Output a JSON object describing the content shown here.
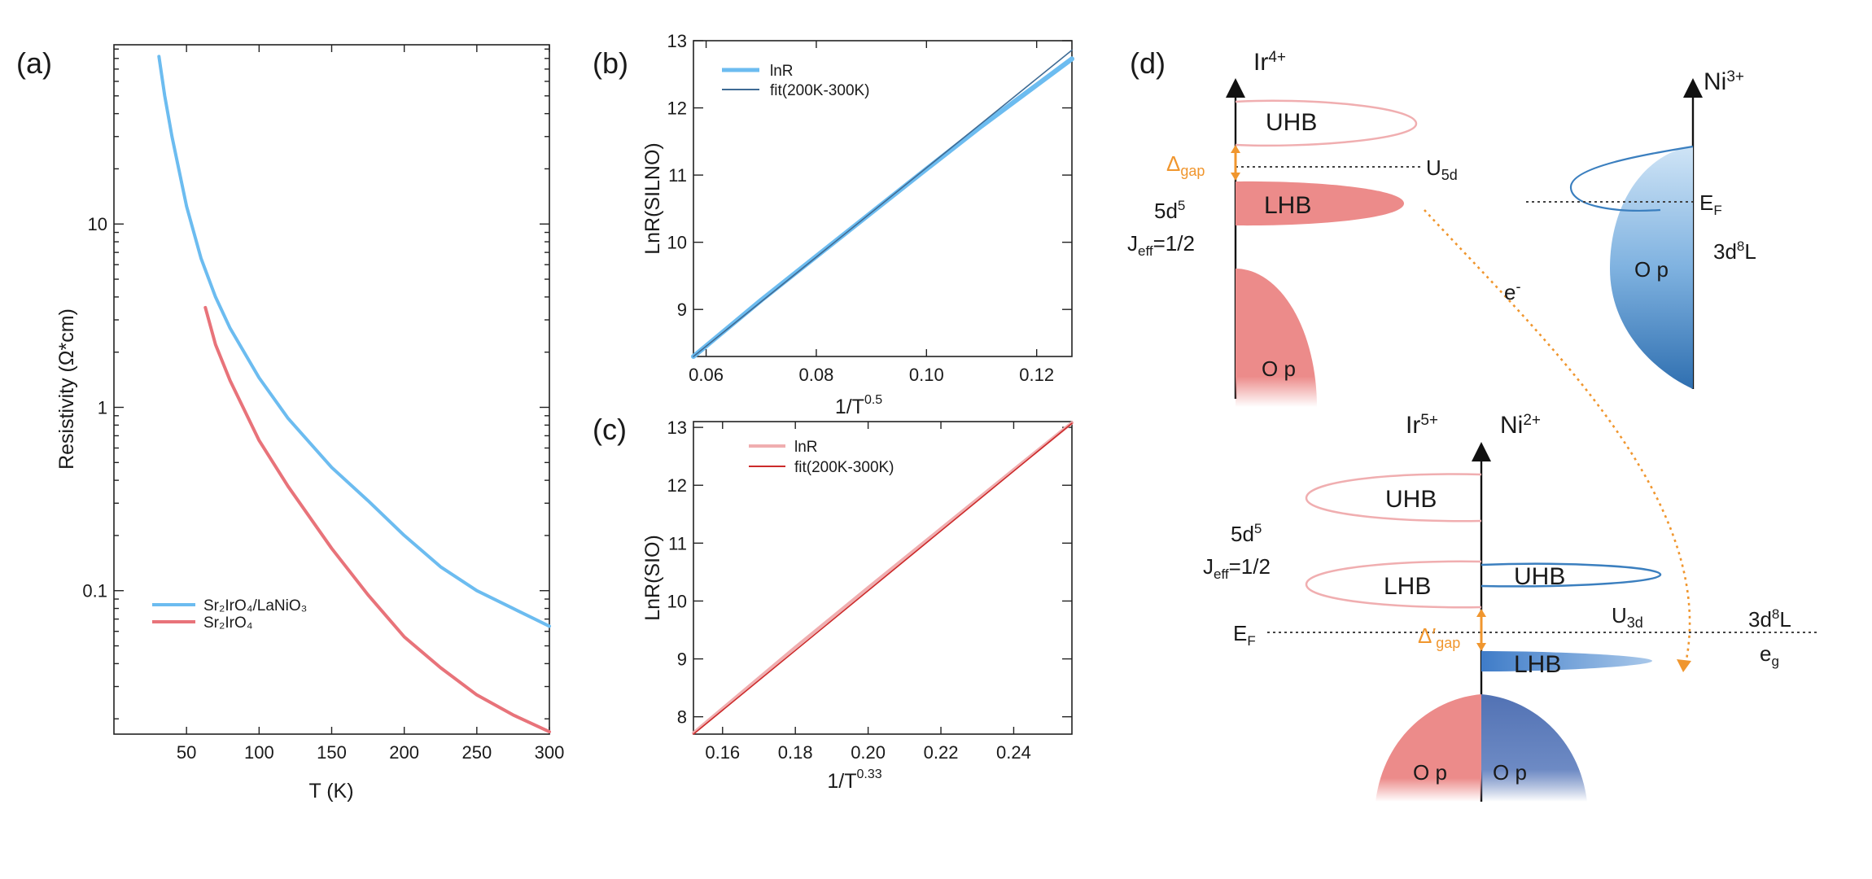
{
  "colors": {
    "blue": "#6cbcf0",
    "red": "#e8737a",
    "pink": "#f0aeb0",
    "dark_red": "#cc2a2a",
    "dark_blue": "#3f6b94",
    "orange": "#f0962e",
    "salmon": "#ec8b8a",
    "steel": "#3b7fbf",
    "slate": "#5272b4"
  },
  "panel_labels": {
    "a": "(a)",
    "b": "(b)",
    "c": "(c)",
    "d": "(d)"
  },
  "chart_data": [
    {
      "id": "a",
      "type": "line",
      "xlabel": "T (K)",
      "ylabel": "Resistivity (Ω*cm)",
      "xlim": [
        0,
        300
      ],
      "ylim": [
        0.0165,
        95
      ],
      "yscale": "log",
      "xticks": [
        "50",
        "100",
        "150",
        "200",
        "250",
        "300"
      ],
      "yticks": [
        "0.1",
        "1",
        "10"
      ],
      "legend_position": "lower-left",
      "series": [
        {
          "name": "Sr₂IrO₄/LaNiO₃",
          "color": "#6cbcf0",
          "x": [
            31,
            35,
            40,
            50,
            60,
            70,
            80,
            100,
            120,
            150,
            175,
            200,
            225,
            250,
            275,
            300
          ],
          "y": [
            82,
            50,
            30,
            12.5,
            6.5,
            4.0,
            2.7,
            1.45,
            0.87,
            0.47,
            0.31,
            0.2,
            0.135,
            0.1,
            0.08,
            0.064
          ]
        },
        {
          "name": "Sr₂IrO₄",
          "color": "#e8737a",
          "x": [
            63,
            70,
            80,
            100,
            120,
            150,
            175,
            200,
            225,
            250,
            275,
            300
          ],
          "y": [
            3.5,
            2.2,
            1.4,
            0.66,
            0.37,
            0.17,
            0.095,
            0.056,
            0.038,
            0.027,
            0.021,
            0.017
          ]
        }
      ]
    },
    {
      "id": "b",
      "type": "line",
      "xlabel": "1/T",
      "xlabel_sup": "0.5",
      "ylabel": "LnR(SILNO)",
      "xlim": [
        0.0577,
        0.1264
      ],
      "ylim": [
        8.3,
        13.0
      ],
      "xticks": [
        "0.06",
        "0.08",
        "0.10",
        "0.12"
      ],
      "yticks": [
        "9",
        "10",
        "11",
        "12",
        "13"
      ],
      "legend_position": "top-left",
      "series": [
        {
          "name": "lnR",
          "color": "#6cbcf0",
          "x": [
            0.0577,
            0.07,
            0.08,
            0.09,
            0.1,
            0.11,
            0.12,
            0.1264
          ],
          "y": [
            8.3,
            9.14,
            9.79,
            10.44,
            11.09,
            11.73,
            12.34,
            12.73
          ]
        },
        {
          "name": "fit(200K-300K)",
          "color": "#3f6b94",
          "x": [
            0.0577,
            0.1264
          ],
          "y": [
            8.3,
            12.86
          ]
        }
      ]
    },
    {
      "id": "c",
      "type": "line",
      "xlabel": "1/T",
      "xlabel_sup": "0.33",
      "ylabel": "LnR(SIO)",
      "xlim": [
        0.152,
        0.256
      ],
      "ylim": [
        7.7,
        13.1
      ],
      "xticks": [
        "0.16",
        "0.18",
        "0.20",
        "0.22",
        "0.24"
      ],
      "yticks": [
        "8",
        "9",
        "10",
        "11",
        "12",
        "13"
      ],
      "legend_position": "top-left",
      "series": [
        {
          "name": "lnR",
          "color": "#f0aeb0",
          "x": [
            0.152,
            0.18,
            0.2,
            0.22,
            0.24,
            0.256
          ],
          "y": [
            7.72,
            9.2,
            10.23,
            11.25,
            12.27,
            13.08
          ]
        },
        {
          "name": "fit(200K-300K)",
          "color": "#cc2a2a",
          "x": [
            0.152,
            0.256
          ],
          "y": [
            7.7,
            13.07
          ]
        }
      ]
    }
  ],
  "diagram": {
    "ir4": "Ir",
    "ir4_sup": "4+",
    "ni3": "Ni",
    "ni3_sup": "3+",
    "uhb": "UHB",
    "lhb": "LHB",
    "delta_gap": "Δ",
    "delta_gap_sub": "gap",
    "u5d": "U",
    "u5d_sub": "5d",
    "config_5d": "5d",
    "config_5d_sup": "5",
    "jeff_j": "J",
    "jeff_sub": "eff",
    "jeff_val": "=1/2",
    "op": "O p",
    "ef": "E",
    "ef_sub": "F",
    "config_3d8l": "3d",
    "config_3d8l_sup": "8",
    "config_3d8l_end": "L",
    "electron": "e",
    "electron_sup": "-",
    "ir5": "Ir",
    "ir5_sup": "5+",
    "ni2": "Ni",
    "ni2_sup": "2+",
    "u3d": "U",
    "u3d_sub": "3d",
    "delta_prime": "Δ′",
    "eg": "e",
    "eg_sub": "g"
  }
}
